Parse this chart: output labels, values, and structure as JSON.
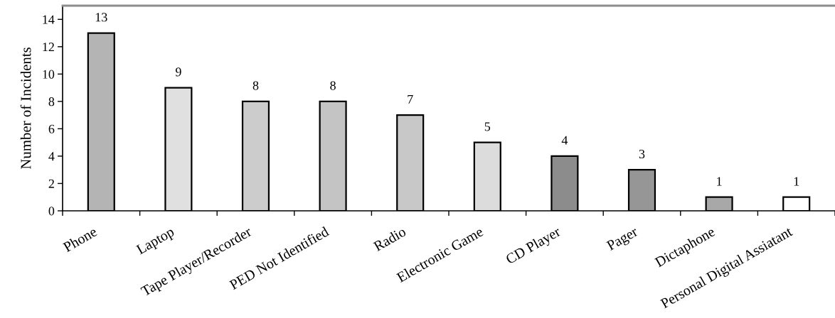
{
  "chart_data": {
    "type": "bar",
    "ylabel": "Number of Incidents",
    "categories": [
      "Phone",
      "Laptop",
      "Tape Player/Recorder",
      "PED Not Identified",
      "Radio",
      "Electronic Game",
      "CD Player",
      "Pager",
      "Dictaphone",
      "Personal Digital Assiatant"
    ],
    "values": [
      13,
      9,
      8,
      8,
      7,
      5,
      4,
      3,
      1,
      1
    ],
    "colors": [
      "#b4b4b4",
      "#e0e0e0",
      "#cccccc",
      "#c4c4c4",
      "#c8c8c8",
      "#dcdcdc",
      "#8c8c8c",
      "#969696",
      "#a8a8a8",
      "#ffffff"
    ],
    "ylim": [
      0,
      15
    ],
    "yticks": [
      0,
      2,
      4,
      6,
      8,
      10,
      12,
      14
    ],
    "data_labels": true
  }
}
